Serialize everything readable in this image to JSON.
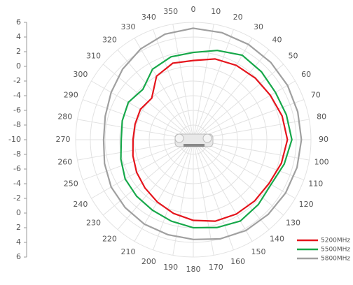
{
  "chart_data": {
    "type": "polar",
    "x": [
      0,
      15,
      30,
      45,
      60,
      75,
      90,
      105,
      120,
      135,
      150,
      165,
      180,
      195,
      210,
      225,
      240,
      255,
      270,
      285,
      300,
      315,
      330,
      345
    ],
    "series": [
      {
        "name": "5200MHz",
        "color": "#e5141c",
        "values": [
          0.8,
          1.4,
          1.7,
          1.9,
          2.1,
          2.5,
          2.8,
          2.4,
          1.9,
          1.8,
          1.7,
          1.5,
          1.0,
          0.4,
          -0.2,
          -0.7,
          -1.1,
          -1.5,
          -1.8,
          -1.8,
          -1.7,
          -2.0,
          0.0,
          0.8
        ]
      },
      {
        "name": "5500MHz",
        "color": "#17a84a",
        "values": [
          1.9,
          2.6,
          3.3,
          3.1,
          2.9,
          3.1,
          3.4,
          2.8,
          2.2,
          2.5,
          2.8,
          2.4,
          2.0,
          1.5,
          1.1,
          0.9,
          0.7,
          0.2,
          -0.2,
          0.0,
          0.2,
          -0.3,
          1.1,
          1.7
        ]
      },
      {
        "name": "5800MHz",
        "color": "#a0a0a0",
        "values": [
          5.2,
          5.1,
          5.0,
          4.9,
          4.8,
          4.7,
          4.7,
          4.6,
          4.5,
          4.4,
          4.3,
          4.0,
          3.6,
          3.4,
          3.3,
          3.1,
          2.9,
          2.5,
          2.2,
          2.4,
          2.9,
          3.6,
          4.3,
          4.9
        ]
      }
    ],
    "rlim": [
      -10,
      6
    ],
    "rticks": [
      -8,
      -6,
      -4,
      -2,
      0,
      2,
      4,
      6
    ],
    "angle_ticks": [
      0,
      10,
      20,
      30,
      40,
      50,
      60,
      70,
      80,
      90,
      100,
      110,
      120,
      130,
      140,
      150,
      160,
      170,
      180,
      190,
      200,
      210,
      220,
      230,
      240,
      250,
      260,
      270,
      280,
      290,
      300,
      310,
      320,
      330,
      340,
      350
    ],
    "scale_labels": [
      6,
      4,
      2,
      0,
      -2,
      -4,
      -6,
      -8,
      -10,
      -8,
      -6,
      -4,
      -2,
      0,
      2,
      4,
      6
    ],
    "grid": true
  }
}
